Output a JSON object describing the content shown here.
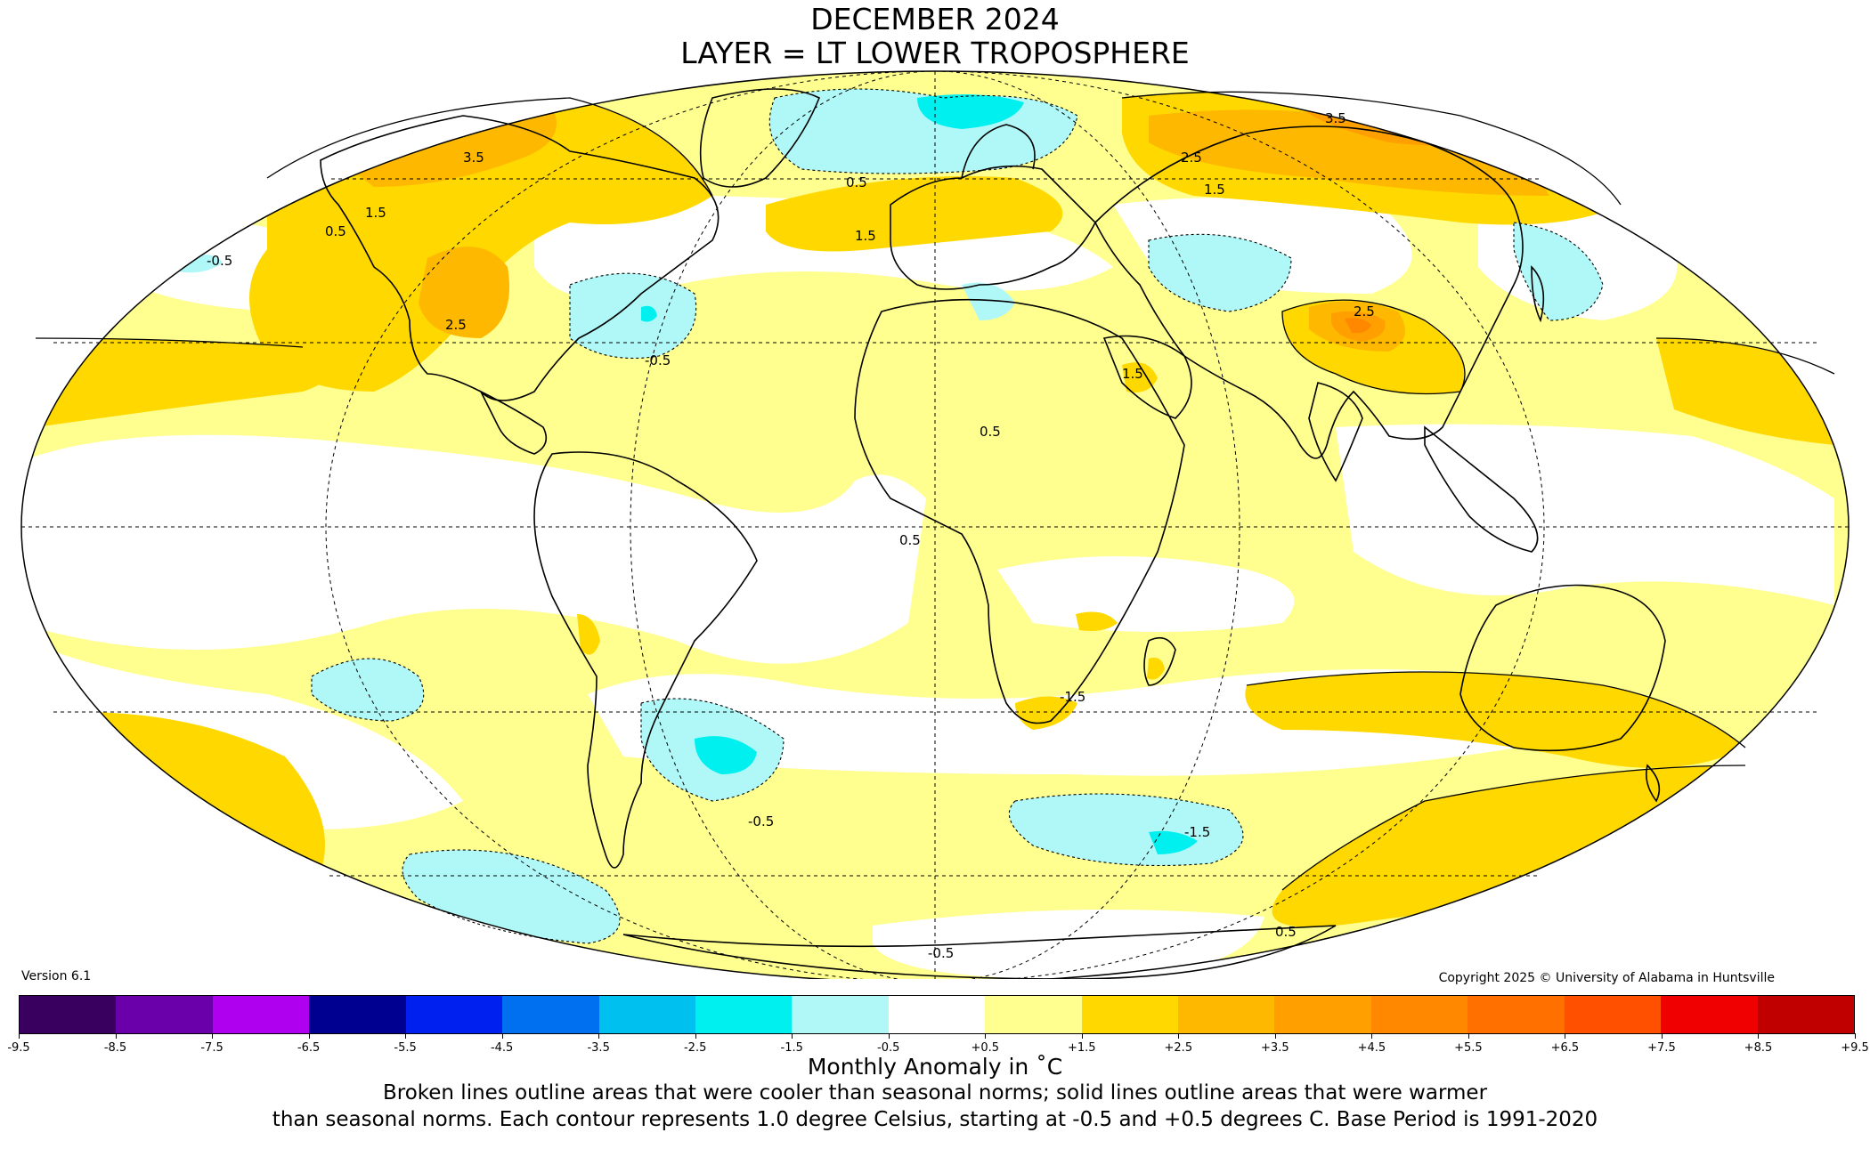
{
  "title": {
    "line1": "DECEMBER 2024",
    "line2": "LAYER = LT LOWER TROPOSPHERE"
  },
  "version": "Version 6.1",
  "copyright": "Copyright 2025 © University of Alabama in Huntsville",
  "colorbar": {
    "colors": [
      "#3a0060",
      "#6a00aa",
      "#b000f0",
      "#000090",
      "#0020f0",
      "#0070f0",
      "#00c0f0",
      "#00f0f0",
      "#b0f8f8",
      "#ffffff",
      "#ffff90",
      "#ffd800",
      "#ffb800",
      "#ffa000",
      "#ff8800",
      "#ff7000",
      "#ff5000",
      "#f00000",
      "#c00000"
    ],
    "ticks": [
      "-9.5",
      "-8.5",
      "-7.5",
      "-6.5",
      "-5.5",
      "-4.5",
      "-3.5",
      "-2.5",
      "-1.5",
      "-0.5",
      "+0.5",
      "+1.5",
      "+2.5",
      "+3.5",
      "+4.5",
      "+5.5",
      "+6.5",
      "+7.5",
      "+8.5",
      "+9.5"
    ]
  },
  "units": "Monthly Anomaly in ˚C",
  "caption": {
    "line1": "Broken lines outline areas that were cooler than seasonal norms; solid lines outline areas that were warmer",
    "line2": "than seasonal norms. Each contour represents 1.0 degree Celsius, starting at -0.5 and +0.5 degrees C. Base Period is 1991-2020"
  },
  "map": {
    "colors": {
      "cool1": "#b0f8f8",
      "cool2": "#00f0f0",
      "warm1": "#ffff90",
      "warm2": "#ffd800",
      "warm3": "#ffb800",
      "warm4": "#ffa000",
      "warm5": "#ff8800",
      "neutral": "#ffffff"
    },
    "contour_labels": [
      "3.5",
      "2.5",
      "1.5",
      "0.5",
      "-0.5",
      "-1.5",
      "2.5",
      "1.5",
      "0.5",
      "-0.5",
      "1.5",
      "0.5",
      "3.5",
      "2.5",
      "1.5",
      "0.5",
      "-0.5",
      "-1.5",
      "0.5",
      "-0.5"
    ]
  }
}
